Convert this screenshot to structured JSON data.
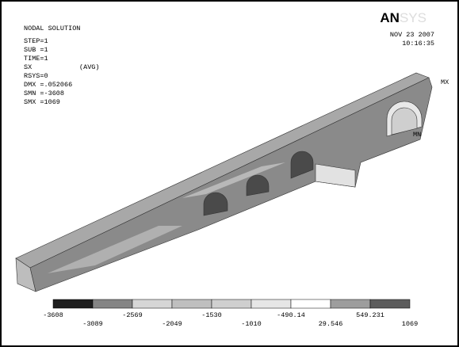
{
  "info": {
    "title": "NODAL SOLUTION",
    "lines": [
      "STEP=1",
      "SUB =1",
      "TIME=1",
      "SX",
      "RSYS=0",
      "DMX =.052066",
      "SMN =-3608",
      "SMX =1069"
    ],
    "avg": "(AVG)"
  },
  "logo": [
    "AN",
    "SYS"
  ],
  "date": "NOV 23 2007",
  "time": "10:16:35",
  "markers": {
    "max": "MX",
    "min": "MN"
  },
  "legend": {
    "colors": [
      "#1e1e1e",
      "#858585",
      "#d6d6d6",
      "#bfbfbf",
      "#cfcfcf",
      "#e6e6e6",
      "#ffffff",
      "#9d9d9d",
      "#5c5c5c"
    ],
    "labels": [
      "-3608",
      "-3089",
      "-2569",
      "-2049",
      "-1530",
      "-1010",
      "-490.14",
      "29.546",
      "549.231",
      "1069"
    ]
  }
}
